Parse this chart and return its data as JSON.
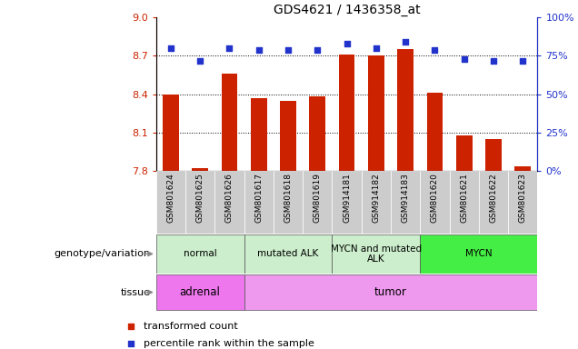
{
  "title": "GDS4621 / 1436358_at",
  "samples": [
    "GSM801624",
    "GSM801625",
    "GSM801626",
    "GSM801617",
    "GSM801618",
    "GSM801619",
    "GSM914181",
    "GSM914182",
    "GSM914183",
    "GSM801620",
    "GSM801621",
    "GSM801622",
    "GSM801623"
  ],
  "bar_values": [
    8.4,
    7.82,
    8.56,
    8.37,
    8.35,
    8.38,
    8.71,
    8.7,
    8.75,
    8.41,
    8.08,
    8.05,
    7.84
  ],
  "dot_values": [
    80,
    72,
    80,
    79,
    79,
    79,
    83,
    80,
    84,
    79,
    73,
    72,
    72
  ],
  "ylim_left": [
    7.8,
    9.0
  ],
  "ylim_right": [
    0,
    100
  ],
  "yticks_left": [
    7.8,
    8.1,
    8.4,
    8.7,
    9.0
  ],
  "yticks_right": [
    0,
    25,
    50,
    75,
    100
  ],
  "hlines": [
    8.7,
    8.4,
    8.1
  ],
  "bar_color": "#cc2200",
  "dot_color": "#2233cc",
  "bar_width": 0.55,
  "geno_groups": [
    {
      "label": "normal",
      "start": 0,
      "end": 2,
      "color": "#cceecc"
    },
    {
      "label": "mutated ALK",
      "start": 3,
      "end": 5,
      "color": "#cceecc"
    },
    {
      "label": "MYCN and mutated\nALK",
      "start": 6,
      "end": 8,
      "color": "#cceecc"
    },
    {
      "label": "MYCN",
      "start": 9,
      "end": 12,
      "color": "#44ee44"
    }
  ],
  "tissue_groups": [
    {
      "label": "adrenal",
      "start": 0,
      "end": 2,
      "color": "#ee77ee"
    },
    {
      "label": "tumor",
      "start": 3,
      "end": 12,
      "color": "#ee99ee"
    }
  ],
  "genotype_label": "genotype/variation",
  "tissue_label": "tissue",
  "legend_bar_label": "transformed count",
  "legend_dot_label": "percentile rank within the sample",
  "xtick_bg": "#cccccc"
}
